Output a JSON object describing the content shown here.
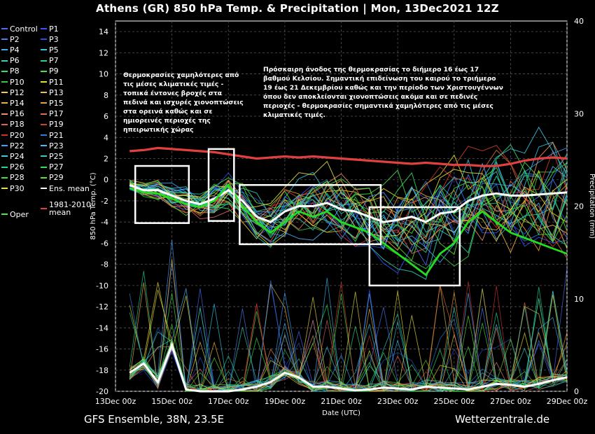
{
  "title": "Athens  (GR)  850 hPa Temp. & Precipitation | Mon, 13Dec2021 12Z",
  "footer": {
    "left": "GFS Ensemble, 38N, 23.5E",
    "right": "Wetterzentrale.de"
  },
  "legend": [
    {
      "label": "Control",
      "color": "#4a6cf7"
    },
    {
      "label": "P1",
      "color": "#3355ff"
    },
    {
      "label": "P2",
      "color": "#4c7cf2"
    },
    {
      "label": "P3",
      "color": "#2a4fd8"
    },
    {
      "label": "P4",
      "color": "#3ab0f0"
    },
    {
      "label": "P5",
      "color": "#2ec8e6"
    },
    {
      "label": "P6",
      "color": "#2fd6c4"
    },
    {
      "label": "P7",
      "color": "#21d49a"
    },
    {
      "label": "P8",
      "color": "#30e070"
    },
    {
      "label": "P9",
      "color": "#48e448"
    },
    {
      "label": "P10",
      "color": "#3cc83c"
    },
    {
      "label": "P11",
      "color": "#e8e020"
    },
    {
      "label": "P12",
      "color": "#f0d040"
    },
    {
      "label": "P13",
      "color": "#f0c040"
    },
    {
      "label": "P14",
      "color": "#f0b040"
    },
    {
      "label": "P15",
      "color": "#f0a030"
    },
    {
      "label": "P16",
      "color": "#f09060"
    },
    {
      "label": "P17",
      "color": "#e07040"
    },
    {
      "label": "P18",
      "color": "#e06060"
    },
    {
      "label": "P19",
      "color": "#d04030"
    },
    {
      "label": "P20",
      "color": "#d03030"
    },
    {
      "label": "P21",
      "color": "#2f7de0"
    },
    {
      "label": "P22",
      "color": "#40a0ff"
    },
    {
      "label": "P23",
      "color": "#50b8ff"
    },
    {
      "label": "P24",
      "color": "#40c8e0"
    },
    {
      "label": "P25",
      "color": "#30d0b0"
    },
    {
      "label": "P26",
      "color": "#20d890"
    },
    {
      "label": "P27",
      "color": "#30e060"
    },
    {
      "label": "P28",
      "color": "#40e040"
    },
    {
      "label": "P29",
      "color": "#60e030"
    },
    {
      "label": "P30",
      "color": "#e8e040"
    },
    {
      "label": "Ens. mean",
      "color": "#ffffff"
    },
    {
      "label": "Oper",
      "color": "#44ee44"
    },
    {
      "label": "1981-2010\nmean",
      "color": "#e04040"
    }
  ],
  "annotations": {
    "left": "Θερμοκρασίες χαμηλότερες από\nτις μέσες κλιματικές τιμές -\nτοπικά έντονες βροχές στα\nπεδινά και ισχυρές χιονοπτώσεις\nστα ορεινά καθώς και σε\nημιορεινές περιοχές της\nηπειρωτικής χώρας",
    "right": "Πρόσκαιρη άνοδος της θερμοκρασίας το διήμερο 16 έως 17\nβαθμού Κελσίου. Σημαντική επιδείνωση του καιρού το τριήμερο\n19 έως 21 Δεκεμβρίου καθώς και την περίοδο των Χριστουγέννων\nόπου δεν αποκλείονται χιονοπτώσεις ακόμα και σε πεδινές\nπεριοχές - θερμοκρασίες σημαντικά χαμηλότερες από τις μέσες\nκλιματικές τιμές."
  },
  "chart_data": {
    "type": "line",
    "xlabel": "Date (UTC)",
    "ylabel": "850 hPa Temp. (°C)",
    "y2label": "Precipitation (mm)",
    "ylim": [
      -20,
      15
    ],
    "y2lim": [
      0,
      40
    ],
    "x_ticks": [
      "13Dec 00z",
      "15Dec 00z",
      "17Dec 00z",
      "19Dec 00z",
      "21Dec 00z",
      "23Dec 00z",
      "25Dec 00z",
      "27Dec 00z",
      "29Dec 00z"
    ],
    "y_ticks": [
      14,
      12,
      10,
      8,
      6,
      4,
      2,
      0,
      -2,
      -4,
      -6,
      -8,
      -10,
      -12,
      -14,
      -16,
      -18,
      -20
    ],
    "y2_ticks": [
      40,
      30,
      20,
      10,
      0
    ],
    "grid": true,
    "x_days": [
      0.5,
      1,
      1.5,
      2,
      2.5,
      3,
      3.5,
      4,
      4.5,
      5,
      5.5,
      6,
      6.5,
      7,
      7.5,
      8,
      8.5,
      9,
      9.5,
      10,
      10.5,
      11,
      11.5,
      12,
      12.5,
      13,
      13.5,
      14,
      14.5,
      15,
      15.5,
      16
    ],
    "series": [
      {
        "name": "Ens. mean",
        "values": [
          -0.5,
          -1,
          -1,
          -1.5,
          -2,
          -2.3,
          -1.8,
          -1,
          -2,
          -3.5,
          -4,
          -3,
          -2.5,
          -2.5,
          -2.2,
          -2.8,
          -3,
          -3.5,
          -4,
          -3.8,
          -3.5,
          -4,
          -3.2,
          -3,
          -2,
          -1.5,
          -1.3,
          -1.5,
          -1.5,
          -1.4,
          -1.3,
          -1.2
        ]
      },
      {
        "name": "1981-2010\nmean",
        "values": [
          2.7,
          2.8,
          3,
          2.9,
          2.8,
          2.7,
          2.6,
          2.4,
          2.2,
          2,
          2.1,
          2.2,
          2.1,
          2.2,
          2.1,
          2,
          1.9,
          1.8,
          1.7,
          1.6,
          1.5,
          1.6,
          1.5,
          1.4,
          1.4,
          1.3,
          1.3,
          1.5,
          1.8,
          2,
          2.1,
          2
        ]
      },
      {
        "name": "Oper",
        "values": [
          -0.8,
          -1.2,
          -1.3,
          -1.8,
          -2.3,
          -2.6,
          -2,
          -0.5,
          -2.5,
          -4,
          -5,
          -4,
          -3,
          -3.5,
          -3,
          -4,
          -4.5,
          -5,
          -6,
          -7,
          -8,
          -9,
          -7,
          -6,
          -4,
          -3,
          -4,
          -5,
          -5.5,
          -6,
          -6.5,
          -7
        ]
      }
    ],
    "precip_ens_mean": [
      2,
      3,
      1,
      5,
      0.2,
      0,
      0,
      0,
      0.2,
      0.5,
      1,
      2,
      1.5,
      0.5,
      0.5,
      0.3,
      0.1,
      0.2,
      0.4,
      0.3,
      0.2,
      0.5,
      0.4,
      0.3,
      0.2,
      0.5,
      0.8,
      0.7,
      0.5,
      0.8,
      1.2,
      1.5
    ],
    "boxes": [
      {
        "x0": 0.7,
        "x1": 2.6,
        "y0": 1.3,
        "y1": -4.1
      },
      {
        "x0": 3.3,
        "x1": 4.2,
        "y0": 2.9,
        "y1": -3.9
      },
      {
        "x0": 4.4,
        "x1": 9.4,
        "y0": -0.5,
        "y1": -6.1
      },
      {
        "x0": 9,
        "x1": 12.2,
        "y0": -2.6,
        "y1": -10
      }
    ]
  }
}
